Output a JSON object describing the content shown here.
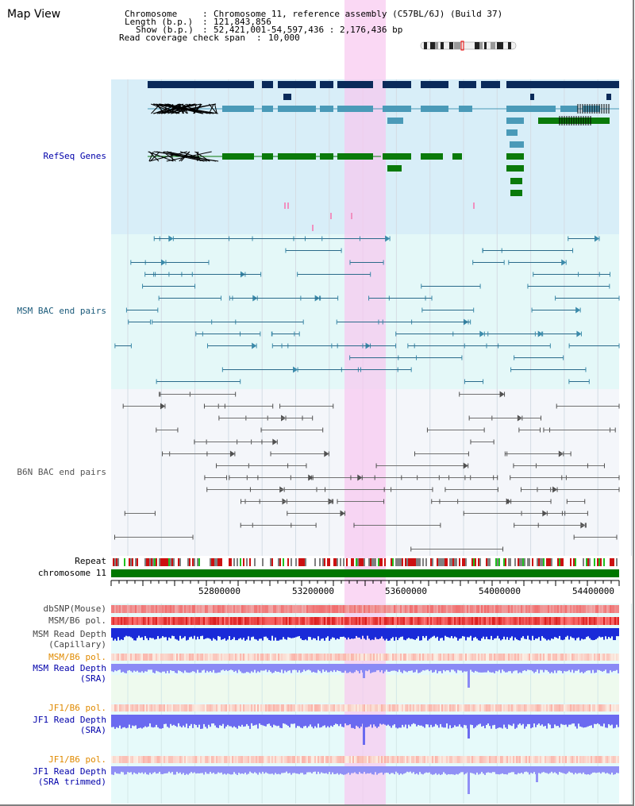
{
  "page": {
    "title": "Map View"
  },
  "info": {
    "chromosome_key": "Chromosome",
    "chromosome_val": "Chromosome 11, reference assembly (C57BL/6J) (Build 37)",
    "length_key": "Length (b.p.)",
    "length_val": "121,843,856",
    "show_key": "Show (b.p.)",
    "show_val": "52,421,001-54,597,436 : 2,176,436 bp",
    "span_key": "Read coverage check span",
    "span_val": "10,000"
  },
  "tracks": {
    "refseq": "RefSeq Genes",
    "msm_bac": "MSM BAC end pairs",
    "b6n_bac": "B6N BAC end pairs",
    "repeat": "Repeat",
    "chromosome": "chromosome 11",
    "dbsnp": "dbSNP(Mouse)",
    "msm_b6_pol": "MSM/B6 pol.",
    "msm_depth_cap_1": "MSM Read Depth",
    "msm_depth_cap_2": "(Capillary)",
    "msm_b6_pol2": "MSM/B6 pol.",
    "msm_depth_sra_1": "MSM Read Depth",
    "msm_depth_sra_2": "(SRA)",
    "jf1_b6_pol": "JF1/B6 pol.",
    "jf1_depth_sra_1": "JF1 Read Depth",
    "jf1_depth_sra_2": "(SRA)",
    "jf1_b6_pol2": "JF1/B6 pol.",
    "jf1_depth_trim_1": "JF1 Read Depth",
    "jf1_depth_trim_2": "(SRA trimmed)"
  },
  "axis": {
    "ticks": [
      "52800000",
      "53200000",
      "53600000",
      "54000000",
      "54400000"
    ]
  },
  "colors": {
    "refseq_bg": "#d8eef8",
    "msm_bg": "#e4f8f8",
    "b6n_bg": "#f4f6fa",
    "highlight": "#f8c8f0",
    "navy": "#0a2a5a",
    "teal": "#4a9ab8",
    "green": "#0a7a0a",
    "chrom_green": "#007700",
    "depth_blue": "#1a2ad8",
    "light_blue": "#7878f0",
    "orange_label": "#e08a00",
    "blue_label": "#0000aa",
    "teal_label": "#1a5a7a"
  }
}
